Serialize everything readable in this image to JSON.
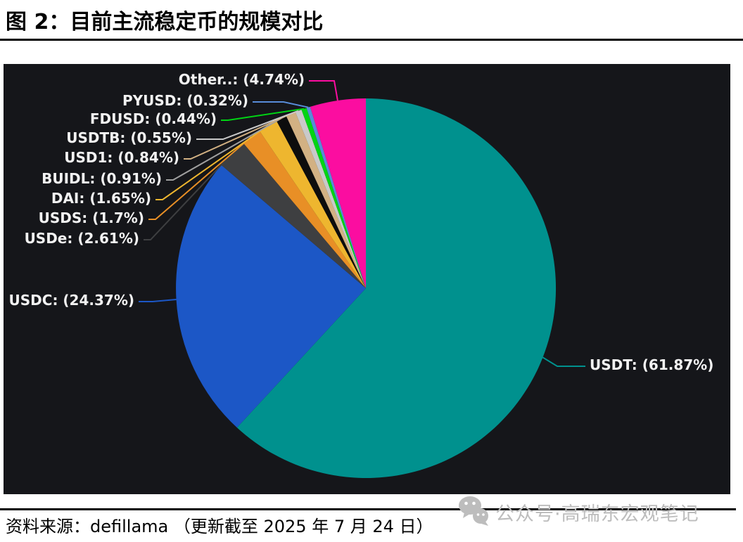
{
  "title": "图 2：目前主流稳定币的规模对比",
  "source_note": "资料来源：defillama （更新截至 2025 年 7 月 24 日）",
  "watermark": {
    "icon": "wechat-icon",
    "text": "公众号·高瑞东宏观笔记"
  },
  "chart_data": {
    "type": "pie",
    "title": "目前主流稳定币的规模对比",
    "unit": "%",
    "direction": "clockwise",
    "start_angle_deg": 0,
    "legend": "none",
    "background": "#15161a",
    "label_color": "#f2f2f2",
    "series": [
      {
        "name": "USDT",
        "value": 61.87,
        "label": "USDT: (61.87%)",
        "color": "#00918e"
      },
      {
        "name": "USDC",
        "value": 24.37,
        "label": "USDC: (24.37%)",
        "color": "#1c57c6"
      },
      {
        "name": "USDe",
        "value": 2.61,
        "label": "USDe: (2.61%)",
        "color": "#3e3f41"
      },
      {
        "name": "USDS",
        "value": 1.7,
        "label": "USDS: (1.7%)",
        "color": "#e88f26"
      },
      {
        "name": "DAI",
        "value": 1.65,
        "label": "DAI: (1.65%)",
        "color": "#eeb62f"
      },
      {
        "name": "BUIDL",
        "value": 0.91,
        "label": "BUIDL: (0.91%)",
        "color": "#0d0d0d",
        "leader_color": "#a0a0a0"
      },
      {
        "name": "USD1",
        "value": 0.84,
        "label": "USD1: (0.84%)",
        "color": "#d2b183"
      },
      {
        "name": "USDTB",
        "value": 0.55,
        "label": "USDTB: (0.55%)",
        "color": "#c9c9c9"
      },
      {
        "name": "FDUSD",
        "value": 0.44,
        "label": "FDUSD: (0.44%)",
        "color": "#00d414"
      },
      {
        "name": "PYUSD",
        "value": 0.32,
        "label": "PYUSD: (0.32%)",
        "color": "#588cd8"
      },
      {
        "name": "Other..",
        "value": 4.74,
        "label": "Other..: (4.74%)",
        "color": "#fb0da0"
      }
    ]
  }
}
